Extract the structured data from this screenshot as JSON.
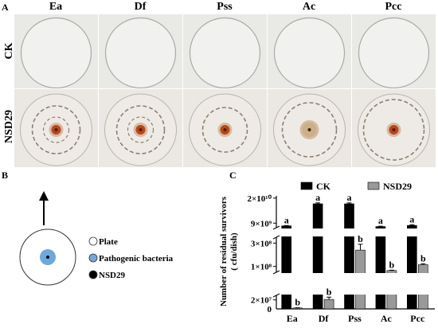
{
  "panel_a": {
    "letter": "A",
    "columns": [
      "Ea",
      "Df",
      "Pss",
      "Ac",
      "Pcc"
    ],
    "rows": [
      "CK",
      "NSD29"
    ]
  },
  "panel_b": {
    "letter": "B",
    "legend": [
      {
        "label": "Plate",
        "color": "#ffffff"
      },
      {
        "label": "Pathogenic bacteria",
        "color": "#6fa8dc"
      },
      {
        "label": "NSD29",
        "color": "#000000"
      }
    ]
  },
  "panel_c": {
    "letter": "C"
  },
  "chart_data": {
    "type": "bar",
    "categories": [
      "Ea",
      "Df",
      "Pss",
      "Ac",
      "Pcc"
    ],
    "ylabel": "Number of residual survivors\n( cfu/dish)",
    "y_broken_axis": true,
    "y_segments": [
      {
        "range": [
          0,
          30000000
        ],
        "ticks": [
          {
            "value": 20000000,
            "label": "2×10⁷"
          }
        ],
        "zero_label": "0"
      },
      {
        "range": [
          50000000,
          350000000
        ],
        "ticks": [
          {
            "value": 100000000,
            "label": "1×10⁸"
          },
          {
            "value": 300000000,
            "label": "3×10⁸"
          }
        ]
      },
      {
        "range": [
          7000000000,
          21000000000
        ],
        "ticks": [
          {
            "value": 9000000000,
            "label": "9×10⁹"
          },
          {
            "value": 20000000000,
            "label": "2×10¹⁰"
          }
        ]
      }
    ],
    "series": [
      {
        "name": "CK",
        "color": "#000000",
        "values": [
          7800000000,
          17500000000,
          17500000000,
          7500000000,
          8000000000
        ],
        "errors": [
          150000000,
          400000000,
          400000000,
          150000000,
          300000000
        ],
        "letters": [
          "a",
          "a",
          "a",
          "a",
          "a"
        ]
      },
      {
        "name": "NSD29",
        "color": "#999999",
        "values": [
          2000000,
          21000000,
          240000000,
          65000000,
          115000000
        ],
        "errors": [
          500000,
          5000000,
          50000000,
          3000000,
          8000000
        ],
        "letters": [
          "b",
          "b",
          "b",
          "b",
          "b"
        ]
      }
    ]
  }
}
